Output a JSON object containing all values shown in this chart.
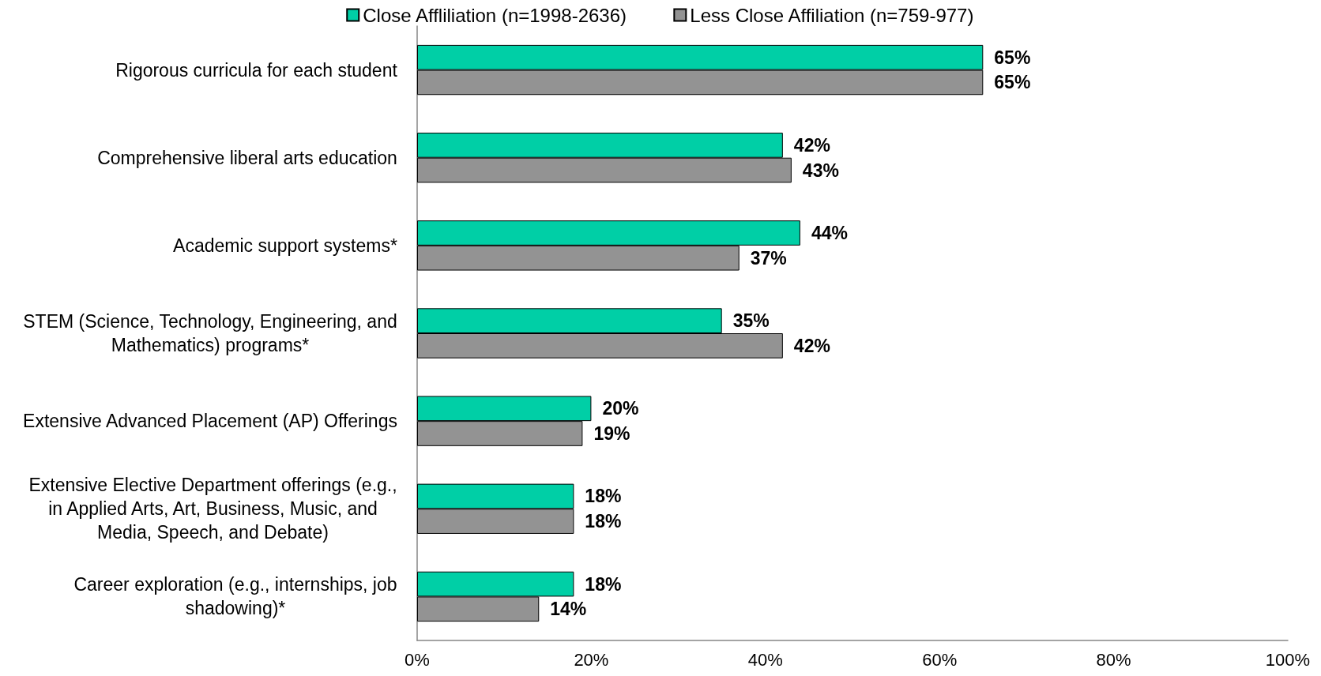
{
  "chart_data": {
    "type": "bar",
    "orientation": "horizontal",
    "categories": [
      "Rigorous curricula for each student",
      "Comprehensive liberal arts education",
      "Academic support systems*",
      "STEM (Science, Technology, Engineering, and Mathematics) programs*",
      "Extensive Advanced Placement (AP) Offerings",
      "Extensive Elective Department offerings (e.g., in Applied Arts, Art, Business, Music, and Media, Speech, and Debate)",
      "Career exploration (e.g., internships, job shadowing)*"
    ],
    "series": [
      {
        "name": "Close Affliliation (n=1998-2636)",
        "color": "#00cfa6",
        "values": [
          65,
          42,
          44,
          35,
          20,
          18,
          18
        ],
        "value_labels": [
          "65%",
          "42%",
          "44%",
          "35%",
          "20%",
          "18%",
          "18%"
        ]
      },
      {
        "name": "Less Close Affiliation (n=759-977)",
        "color": "#939393",
        "values": [
          65,
          43,
          37,
          42,
          19,
          18,
          14
        ],
        "value_labels": [
          "65%",
          "43%",
          "37%",
          "42%",
          "19%",
          "18%",
          "14%"
        ]
      }
    ],
    "xlim": [
      0,
      100
    ],
    "xticks": [
      {
        "value": 0,
        "label": "0%"
      },
      {
        "value": 20,
        "label": "20%"
      },
      {
        "value": 40,
        "label": "40%"
      },
      {
        "value": 60,
        "label": "60%"
      },
      {
        "value": 80,
        "label": "80%"
      },
      {
        "value": 100,
        "label": "100%"
      }
    ],
    "legend": "top"
  }
}
